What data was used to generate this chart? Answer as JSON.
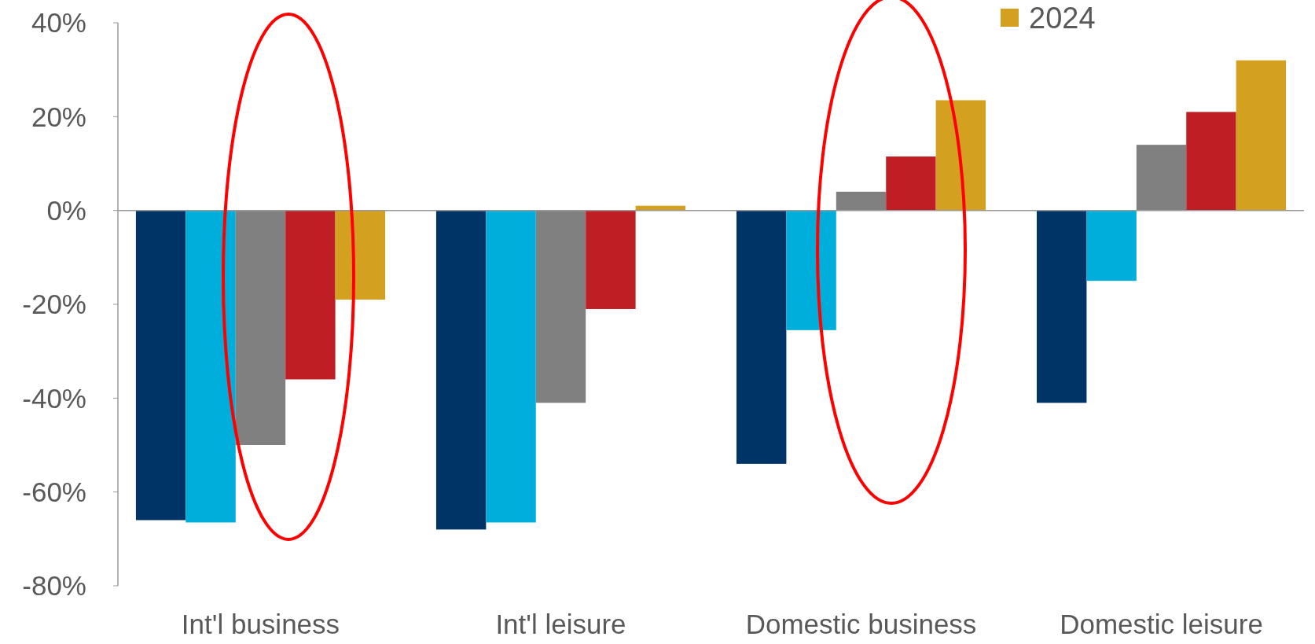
{
  "chart_data": {
    "type": "bar",
    "categories": [
      "Int'l business",
      "Int'l leisure",
      "Domestic business",
      "Domestic leisure"
    ],
    "series": [
      {
        "color": "#003366",
        "values": [
          -66,
          -68,
          -54,
          -41
        ]
      },
      {
        "color": "#00aedb",
        "values": [
          -66.5,
          -66.5,
          -25.5,
          -15
        ]
      },
      {
        "color": "#808080",
        "values": [
          -50,
          -41,
          4,
          14
        ]
      },
      {
        "color": "#be1e24",
        "values": [
          -36,
          -21,
          11.5,
          21
        ]
      },
      {
        "name": "2024",
        "color": "#d4a020",
        "values": [
          -19,
          1,
          23.5,
          32
        ]
      }
    ],
    "ylim": [
      -80,
      40
    ],
    "yticks": [
      {
        "value": -80,
        "label": "-80%"
      },
      {
        "value": -60,
        "label": "-60%"
      },
      {
        "value": -40,
        "label": "-40%"
      },
      {
        "value": -20,
        "label": "-20%"
      },
      {
        "value": 0,
        "label": "0%"
      },
      {
        "value": 20,
        "label": "20%"
      },
      {
        "value": 40,
        "label": "40%"
      }
    ],
    "legend": "top right"
  }
}
